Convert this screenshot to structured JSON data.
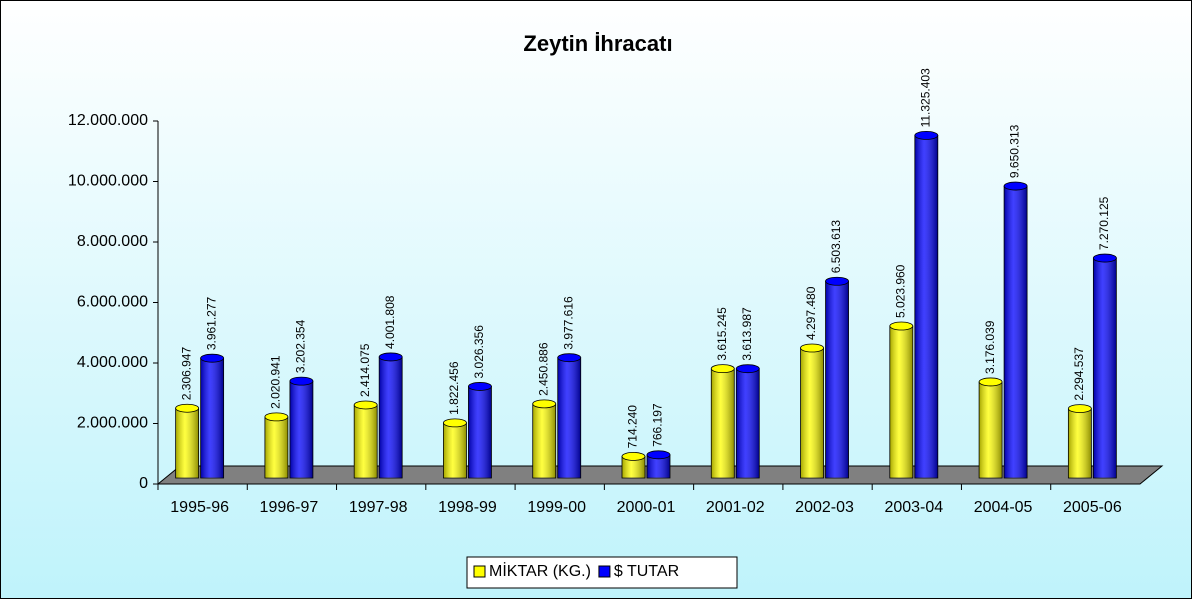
{
  "chart_data": {
    "type": "bar",
    "title": "Zeytin İhracatı",
    "categories": [
      "1995-96",
      "1996-97",
      "1997-98",
      "1998-99",
      "1999-00",
      "2000-01",
      "2001-02",
      "2002-03",
      "2003-04",
      "2004-05",
      "2005-06"
    ],
    "series": [
      {
        "name": "MİKTAR (KG.)",
        "color": "#ffff00",
        "values": [
          2306947,
          2020941,
          2414075,
          1822456,
          2450886,
          714240,
          3615245,
          4297480,
          5023960,
          3176039,
          2294537
        ],
        "value_labels": [
          "2.306.947",
          "2.020.941",
          "2.414.075",
          "1.822.456",
          "2.450.886",
          "714.240",
          "3.615.245",
          "4.297.480",
          "5.023.960",
          "3.176.039",
          "2.294.537"
        ]
      },
      {
        "name": "$ TUTAR",
        "color": "#0000ff",
        "values": [
          3961277,
          3202354,
          4001808,
          3026356,
          3977616,
          766197,
          3613987,
          6503613,
          11325403,
          9650313,
          7270125
        ],
        "value_labels": [
          "3.961.277",
          "3.202.354",
          "4.001.808",
          "3.026.356",
          "3.977.616",
          "766.197",
          "3.613.987",
          "6.503.613",
          "11.325.403",
          "9.650.313",
          "7.270.125"
        ]
      }
    ],
    "ylim": [
      0,
      12000000
    ],
    "yticks": [
      0,
      {
        "value": 2000000,
        "label": "2.000.000"
      },
      {
        "value": 4000000,
        "label": "4.000.000"
      },
      {
        "value": 6000000,
        "label": "6.000.000"
      },
      {
        "value": 8000000,
        "label": "8.000.000"
      },
      {
        "value": 10000000,
        "label": "10.000.000"
      },
      {
        "value": 12000000,
        "label": "12.000.000"
      }
    ],
    "legend": "bottom"
  }
}
